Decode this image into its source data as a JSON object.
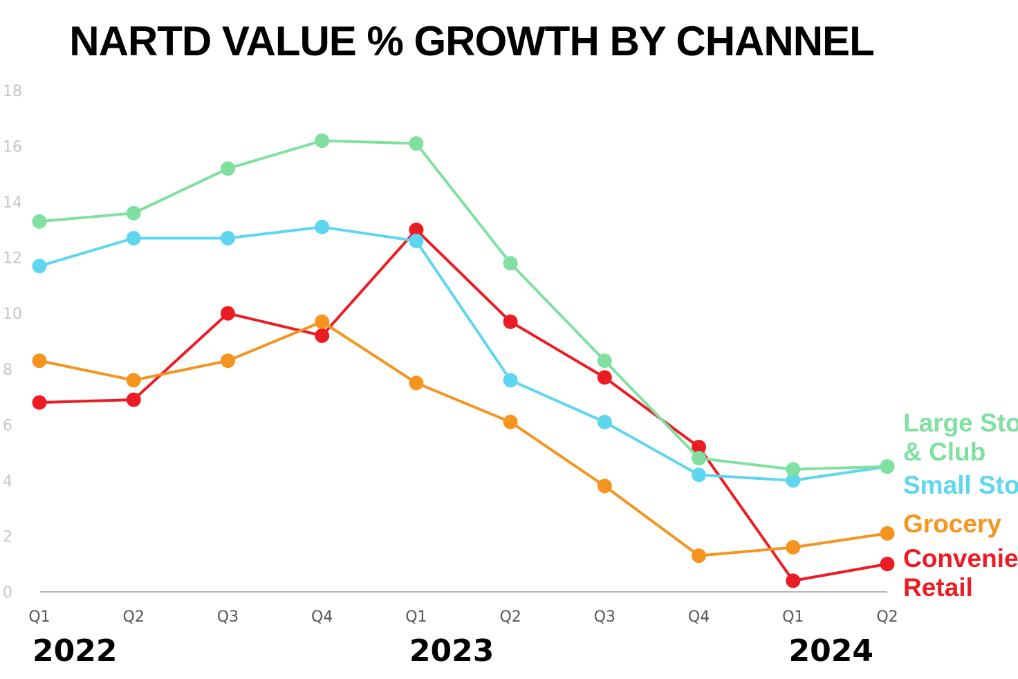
{
  "chart_data": {
    "type": "line",
    "title": "NARTD VALUE % GROWTH BY CHANNEL",
    "xlabel": "",
    "ylabel": "",
    "ylim": [
      0,
      18
    ],
    "yticks": [
      0,
      2,
      4,
      6,
      8,
      10,
      12,
      14,
      16,
      18
    ],
    "categories": [
      "Q1",
      "Q2",
      "Q3",
      "Q4",
      "Q1",
      "Q2",
      "Q3",
      "Q4",
      "Q1",
      "Q2"
    ],
    "years": [
      {
        "label": "2022",
        "start_index": 0
      },
      {
        "label": "2023",
        "start_index": 4
      },
      {
        "label": "2024",
        "start_index": 8
      }
    ],
    "grid": false,
    "legend_position": "right",
    "series": [
      {
        "name": "Large Store & Club",
        "label_lines": [
          "Large Store",
          "& Club"
        ],
        "color": "#7fe0a0",
        "values": [
          13.3,
          13.6,
          15.2,
          16.2,
          16.1,
          11.8,
          8.3,
          4.8,
          4.4,
          4.5
        ]
      },
      {
        "name": "Small Store",
        "label_lines": [
          "Small Store"
        ],
        "color": "#5fd6f0",
        "values": [
          11.7,
          12.7,
          12.7,
          13.1,
          12.6,
          7.6,
          6.1,
          4.2,
          4.0,
          4.5
        ]
      },
      {
        "name": "Grocery",
        "label_lines": [
          "Grocery"
        ],
        "color": "#f5941f",
        "values": [
          8.3,
          7.6,
          8.3,
          9.7,
          7.5,
          6.1,
          3.8,
          1.3,
          1.6,
          2.1
        ]
      },
      {
        "name": "Convenience Retail",
        "label_lines": [
          "Convenience",
          "Retail"
        ],
        "color": "#ec1c24",
        "values": [
          6.8,
          6.9,
          10.0,
          9.2,
          13.0,
          9.7,
          7.7,
          5.2,
          0.4,
          1.0
        ]
      }
    ]
  }
}
